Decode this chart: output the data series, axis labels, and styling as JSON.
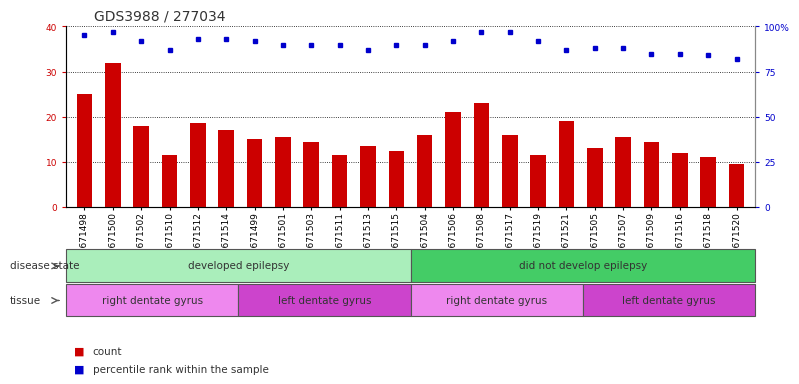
{
  "title": "GDS3988 / 277034",
  "samples": [
    "GSM671498",
    "GSM671500",
    "GSM671502",
    "GSM671510",
    "GSM671512",
    "GSM671514",
    "GSM671499",
    "GSM671501",
    "GSM671503",
    "GSM671511",
    "GSM671513",
    "GSM671515",
    "GSM671504",
    "GSM671506",
    "GSM671508",
    "GSM671517",
    "GSM671519",
    "GSM671521",
    "GSM671505",
    "GSM671507",
    "GSM671509",
    "GSM671516",
    "GSM671518",
    "GSM671520"
  ],
  "counts": [
    25,
    32,
    18,
    11.5,
    18.5,
    17,
    15,
    15.5,
    14.5,
    11.5,
    13.5,
    12.5,
    16,
    21,
    23,
    16,
    11.5,
    19,
    13,
    15.5,
    14.5,
    12,
    11,
    9.5
  ],
  "percentile_pct": [
    95,
    97,
    92,
    87,
    93,
    93,
    92,
    90,
    90,
    90,
    87,
    90,
    90,
    92,
    97,
    97,
    92,
    87,
    88,
    88,
    85,
    85,
    84,
    82
  ],
  "bar_color": "#cc0000",
  "dot_color": "#0000cc",
  "left_ylim": [
    0,
    40
  ],
  "right_ylim": [
    0,
    100
  ],
  "left_yticks": [
    0,
    10,
    20,
    30,
    40
  ],
  "right_yticks": [
    0,
    25,
    50,
    75,
    100
  ],
  "right_yticklabels": [
    "0",
    "25",
    "50",
    "75",
    "100%"
  ],
  "disease_state_groups": [
    {
      "label": "developed epilepsy",
      "start": 0,
      "end": 12,
      "color": "#aaeebb"
    },
    {
      "label": "did not develop epilepsy",
      "start": 12,
      "end": 24,
      "color": "#44cc66"
    }
  ],
  "tissue_groups": [
    {
      "label": "right dentate gyrus",
      "start": 0,
      "end": 6,
      "color": "#ee88ee"
    },
    {
      "label": "left dentate gyrus",
      "start": 6,
      "end": 12,
      "color": "#cc44cc"
    },
    {
      "label": "right dentate gyrus",
      "start": 12,
      "end": 18,
      "color": "#ee88ee"
    },
    {
      "label": "left dentate gyrus",
      "start": 18,
      "end": 24,
      "color": "#cc44cc"
    }
  ],
  "background_color": "#ffffff",
  "plot_bg_color": "#ffffff",
  "title_fontsize": 10,
  "tick_fontsize": 6.5,
  "annot_fontsize": 7.5
}
